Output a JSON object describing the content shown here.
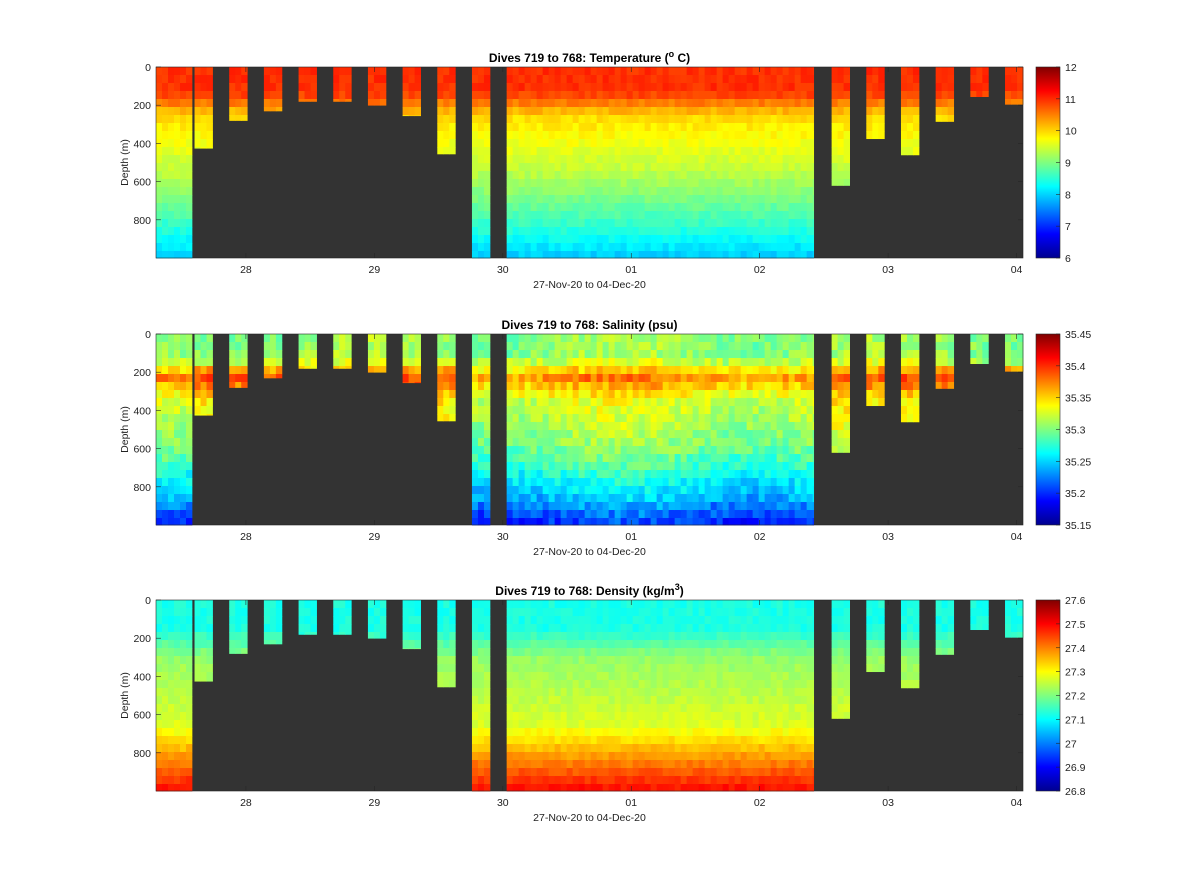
{
  "chart_data": [
    {
      "type": "heatmap",
      "title_parts": [
        "Dives 719 to 768: Temperature (",
        "o",
        " C)"
      ],
      "title_sup_index": 1,
      "xlabel": "27-Nov-20 to 04-Dec-20",
      "ylabel": "Depth (m)",
      "xticks": [
        "28",
        "29",
        "30",
        "01",
        "02",
        "03",
        "04"
      ],
      "yticks": [
        "0",
        "200",
        "400",
        "600",
        "800"
      ],
      "ylim": [
        1000,
        0
      ],
      "colorbar_ticks": [
        "12",
        "11",
        "10",
        "9",
        "8",
        "7",
        "6"
      ],
      "colorbar_range": [
        6,
        12
      ],
      "colormap": "jet",
      "no_data_color": "#333333",
      "variable": "temperature"
    },
    {
      "type": "heatmap",
      "title_parts": [
        "Dives 719 to 768: Salinity (psu)"
      ],
      "title_sup_index": -1,
      "xlabel": "27-Nov-20 to 04-Dec-20",
      "ylabel": "Depth (m)",
      "xticks": [
        "28",
        "29",
        "30",
        "01",
        "02",
        "03",
        "04"
      ],
      "yticks": [
        "0",
        "200",
        "400",
        "600",
        "800"
      ],
      "ylim": [
        1000,
        0
      ],
      "colorbar_ticks": [
        "35.45",
        "35.4",
        "35.35",
        "35.3",
        "35.25",
        "35.2",
        "35.15"
      ],
      "colorbar_range": [
        35.15,
        35.45
      ],
      "colormap": "jet",
      "no_data_color": "#333333",
      "variable": "salinity"
    },
    {
      "type": "heatmap",
      "title_parts": [
        "Dives 719 to 768: Density (kg/m",
        "3",
        ")"
      ],
      "title_sup_index": 1,
      "xlabel": "27-Nov-20 to 04-Dec-20",
      "ylabel": "Depth (m)",
      "xticks": [
        "28",
        "29",
        "30",
        "01",
        "02",
        "03",
        "04"
      ],
      "yticks": [
        "0",
        "200",
        "400",
        "600",
        "800"
      ],
      "ylim": [
        1000,
        0
      ],
      "colorbar_ticks": [
        "27.6",
        "27.5",
        "27.4",
        "27.3",
        "27.2",
        "27.1",
        "27",
        "26.9",
        "26.8"
      ],
      "colorbar_range": [
        26.8,
        27.6
      ],
      "colormap": "jet",
      "no_data_color": "#333333",
      "variable": "density"
    }
  ],
  "dives": [
    {
      "start_day": 27.3,
      "end_day": 27.58,
      "max_depth": 1000,
      "kind": "full"
    },
    {
      "start_day": 27.6,
      "end_day": 27.74,
      "max_depth": 425,
      "kind": "partial"
    },
    {
      "start_day": 27.87,
      "end_day": 28.01,
      "max_depth": 280,
      "kind": "partial"
    },
    {
      "start_day": 28.14,
      "end_day": 28.28,
      "max_depth": 230,
      "kind": "partial"
    },
    {
      "start_day": 28.41,
      "end_day": 28.55,
      "max_depth": 180,
      "kind": "partial"
    },
    {
      "start_day": 28.68,
      "end_day": 28.82,
      "max_depth": 180,
      "kind": "partial"
    },
    {
      "start_day": 28.95,
      "end_day": 29.09,
      "max_depth": 200,
      "kind": "partial"
    },
    {
      "start_day": 29.22,
      "end_day": 29.36,
      "max_depth": 255,
      "kind": "partial"
    },
    {
      "start_day": 29.49,
      "end_day": 29.63,
      "max_depth": 455,
      "kind": "partial"
    },
    {
      "start_day": 29.76,
      "end_day": 29.9,
      "max_depth": 1000,
      "kind": "full"
    },
    {
      "start_day": 30.03,
      "end_day": 32.42,
      "max_depth": 1000,
      "kind": "block"
    },
    {
      "start_day": 32.56,
      "end_day": 32.7,
      "max_depth": 620,
      "kind": "partial"
    },
    {
      "start_day": 32.83,
      "end_day": 32.97,
      "max_depth": 375,
      "kind": "partial"
    },
    {
      "start_day": 33.1,
      "end_day": 33.24,
      "max_depth": 460,
      "kind": "partial"
    },
    {
      "start_day": 33.37,
      "end_day": 33.51,
      "max_depth": 285,
      "kind": "partial"
    },
    {
      "start_day": 33.64,
      "end_day": 33.78,
      "max_depth": 155,
      "kind": "partial"
    },
    {
      "start_day": 33.91,
      "end_day": 34.05,
      "max_depth": 195,
      "kind": "partial"
    }
  ]
}
